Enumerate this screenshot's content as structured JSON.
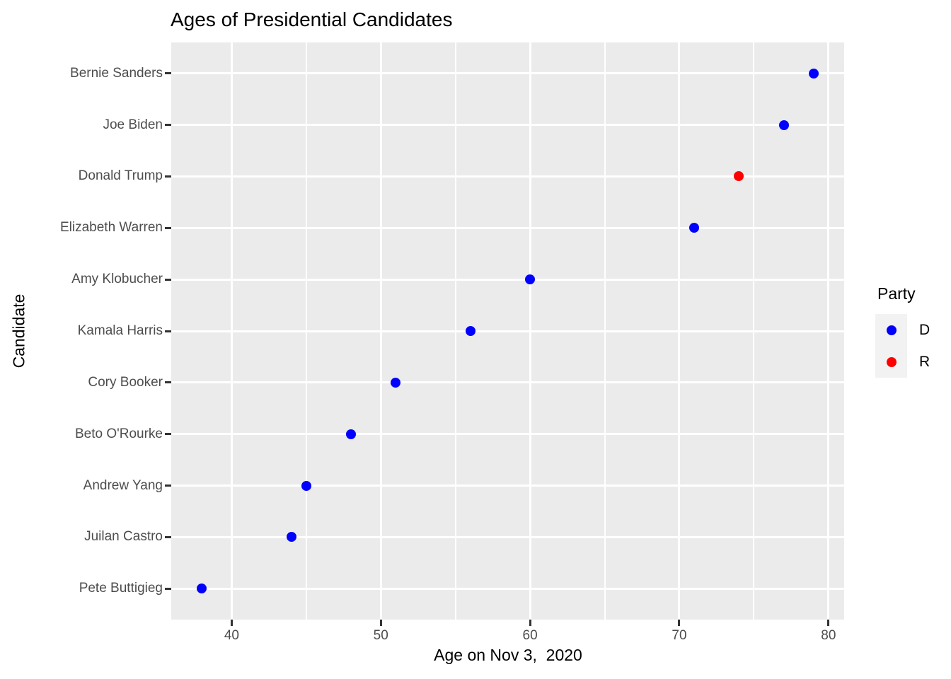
{
  "chart_data": {
    "type": "scatter",
    "title": "Ages of Presidential Candidates",
    "xlabel": "Age on Nov 3,  2020",
    "ylabel": "Candidate",
    "categories": [
      "Bernie Sanders",
      "Joe Biden",
      "Donald Trump",
      "Elizabeth Warren",
      "Amy Klobucher",
      "Kamala Harris",
      "Cory Booker",
      "Beto O'Rourke",
      "Andrew Yang",
      "Juilan Castro",
      "Pete Buttigieg"
    ],
    "points": [
      {
        "candidate": "Bernie Sanders",
        "age": 79,
        "party": "D"
      },
      {
        "candidate": "Joe Biden",
        "age": 77,
        "party": "D"
      },
      {
        "candidate": "Donald Trump",
        "age": 74,
        "party": "R"
      },
      {
        "candidate": "Elizabeth Warren",
        "age": 71,
        "party": "D"
      },
      {
        "candidate": "Amy Klobucher",
        "age": 60,
        "party": "D"
      },
      {
        "candidate": "Kamala Harris",
        "age": 56,
        "party": "D"
      },
      {
        "candidate": "Cory Booker",
        "age": 51,
        "party": "D"
      },
      {
        "candidate": "Beto O'Rourke",
        "age": 48,
        "party": "D"
      },
      {
        "candidate": "Andrew Yang",
        "age": 45,
        "party": "D"
      },
      {
        "candidate": "Juilan Castro",
        "age": 44,
        "party": "D"
      },
      {
        "candidate": "Pete Buttigieg",
        "age": 38,
        "party": "D"
      }
    ],
    "x_ticks": [
      40,
      50,
      60,
      70,
      80
    ],
    "x_minor_ticks": [
      45,
      55,
      65,
      75
    ],
    "xlim": [
      35.95,
      81.05
    ],
    "grid": true,
    "legend": {
      "title": "Party",
      "position": "right",
      "items": [
        {
          "label": "D",
          "color": "#0000FF"
        },
        {
          "label": "R",
          "color": "#FF0000"
        }
      ]
    },
    "colors": {
      "panel_bg": "#EBEBEB",
      "gridline": "#FFFFFF",
      "tick_label": "#4D4D4D",
      "tick_mark": "#333333",
      "axis_title": "#000000",
      "legend_key_bg": "#F2F2F2"
    }
  }
}
